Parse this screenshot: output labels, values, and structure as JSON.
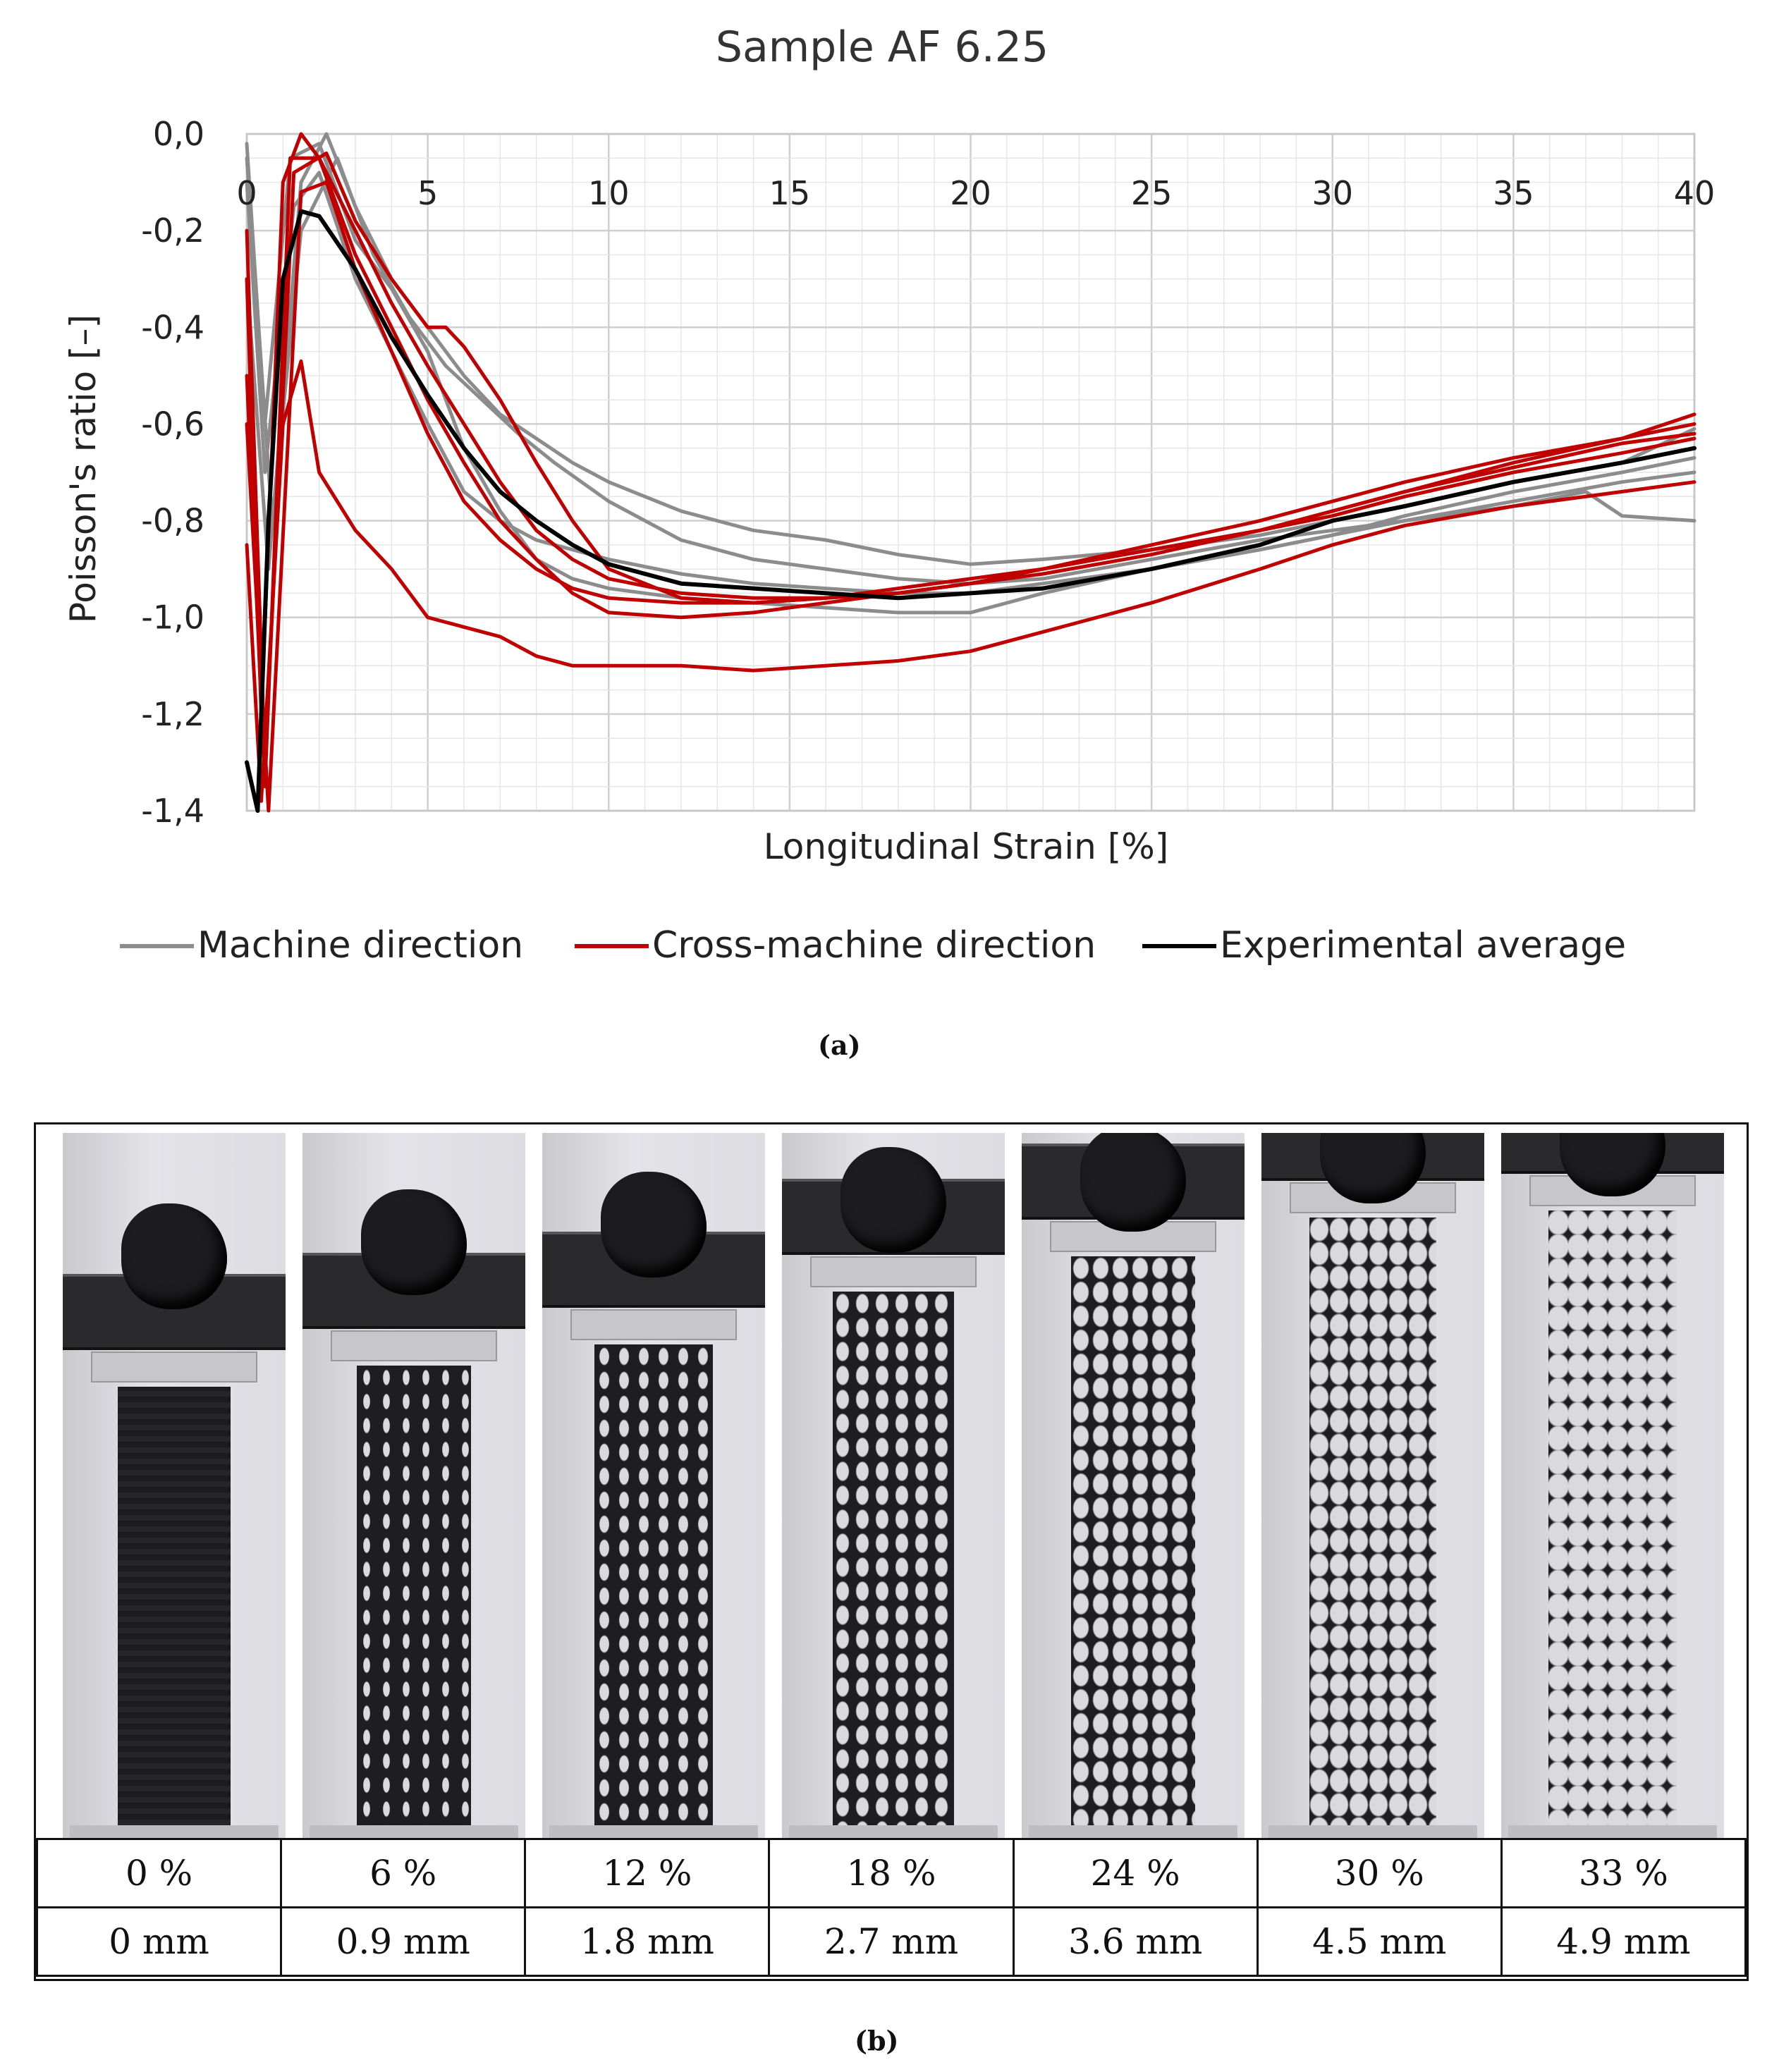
{
  "chart_data": {
    "type": "line",
    "title": "Sample AF 6.25",
    "xlabel": "Longitudinal Strain [%]",
    "ylabel": "Poisson's ratio [–]",
    "xlim": [
      0,
      40
    ],
    "ylim": [
      -1.4,
      0.0
    ],
    "x_ticks": [
      "0",
      "5",
      "10",
      "15",
      "20",
      "25",
      "30",
      "35",
      "40"
    ],
    "y_ticks": [
      "0,0",
      "-0,2",
      "-0,4",
      "-0,6",
      "-0,8",
      "-1,0",
      "-1,2",
      "-1,4"
    ],
    "grid": true,
    "legend_position": "bottom",
    "colors": {
      "machine": "#8c8c8c",
      "cross": "#c00000",
      "average": "#000000"
    },
    "series": [
      {
        "name": "Machine direction",
        "group": "machine",
        "legend": true,
        "x": [
          0,
          0.5,
          1.2,
          2,
          3,
          4,
          5,
          6,
          7,
          8,
          9,
          10,
          12,
          14,
          16,
          18,
          20,
          22,
          25,
          28,
          30,
          32,
          35,
          38,
          40
        ],
        "y": [
          -0.02,
          -0.6,
          -0.05,
          -0.02,
          -0.22,
          -0.32,
          -0.45,
          -0.65,
          -0.78,
          -0.88,
          -0.92,
          -0.94,
          -0.96,
          -0.97,
          -0.98,
          -0.99,
          -0.99,
          -0.95,
          -0.9,
          -0.86,
          -0.83,
          -0.79,
          -0.74,
          -0.7,
          -0.67
        ]
      },
      {
        "name": "Machine direction",
        "group": "machine",
        "legend": false,
        "x": [
          0,
          0.6,
          1.5,
          2.2,
          3,
          4,
          5,
          6,
          7,
          8,
          9,
          10,
          12,
          14,
          16,
          18,
          20,
          22,
          25,
          28,
          30,
          32,
          35,
          38,
          40
        ],
        "y": [
          -0.3,
          -0.9,
          -0.1,
          0.0,
          -0.15,
          -0.3,
          -0.4,
          -0.5,
          -0.58,
          -0.63,
          -0.68,
          -0.72,
          -0.78,
          -0.82,
          -0.84,
          -0.87,
          -0.89,
          -0.88,
          -0.86,
          -0.83,
          -0.8,
          -0.77,
          -0.72,
          -0.68,
          -0.61
        ]
      },
      {
        "name": "Machine direction",
        "group": "machine",
        "legend": false,
        "x": [
          0,
          0.7,
          1.5,
          2.5,
          3.5,
          4.5,
          5.5,
          6.5,
          7.5,
          8.5,
          10,
          12,
          14,
          16,
          18,
          20,
          22,
          25,
          28,
          30,
          32,
          35,
          37,
          38,
          40
        ],
        "y": [
          -0.05,
          -0.8,
          -0.2,
          -0.05,
          -0.25,
          -0.38,
          -0.48,
          -0.55,
          -0.62,
          -0.68,
          -0.76,
          -0.84,
          -0.88,
          -0.9,
          -0.92,
          -0.93,
          -0.92,
          -0.88,
          -0.84,
          -0.82,
          -0.8,
          -0.77,
          -0.74,
          -0.79,
          -0.8
        ]
      },
      {
        "name": "Machine direction",
        "group": "machine",
        "legend": false,
        "x": [
          0,
          0.5,
          1.3,
          2,
          3,
          4,
          5,
          6,
          7,
          8,
          9,
          10,
          12,
          14,
          16,
          18,
          20,
          22,
          25,
          28,
          30,
          32,
          35,
          38,
          40
        ],
        "y": [
          -0.1,
          -0.7,
          -0.15,
          -0.08,
          -0.3,
          -0.45,
          -0.6,
          -0.74,
          -0.8,
          -0.84,
          -0.86,
          -0.88,
          -0.91,
          -0.93,
          -0.94,
          -0.95,
          -0.95,
          -0.93,
          -0.9,
          -0.86,
          -0.83,
          -0.8,
          -0.76,
          -0.72,
          -0.7
        ]
      },
      {
        "name": "Cross-machine direction",
        "group": "cross",
        "legend": true,
        "x": [
          0,
          0.4,
          1,
          1.5,
          2,
          3,
          4,
          5,
          6,
          7,
          8,
          9,
          10,
          12,
          14,
          16,
          18,
          20,
          22,
          25,
          28,
          30,
          32,
          35,
          38,
          40
        ],
        "y": [
          -0.85,
          -1.38,
          -0.6,
          -0.47,
          -0.7,
          -0.82,
          -0.9,
          -1.0,
          -1.02,
          -1.04,
          -1.08,
          -1.1,
          -1.1,
          -1.1,
          -1.11,
          -1.1,
          -1.09,
          -1.07,
          -1.03,
          -0.97,
          -0.9,
          -0.85,
          -0.81,
          -0.77,
          -0.74,
          -0.72
        ]
      },
      {
        "name": "Cross-machine direction",
        "group": "cross",
        "legend": false,
        "x": [
          0,
          0.4,
          1,
          1.5,
          2,
          3,
          4,
          5,
          6,
          7,
          8,
          9,
          10,
          12,
          14,
          16,
          18,
          20,
          22,
          25,
          28,
          30,
          32,
          35,
          38,
          40
        ],
        "y": [
          -0.3,
          -1.2,
          -0.1,
          0.0,
          -0.05,
          -0.25,
          -0.4,
          -0.55,
          -0.68,
          -0.8,
          -0.88,
          -0.95,
          -0.99,
          -1.0,
          -0.99,
          -0.97,
          -0.95,
          -0.93,
          -0.9,
          -0.85,
          -0.8,
          -0.76,
          -0.72,
          -0.67,
          -0.63,
          -0.6
        ]
      },
      {
        "name": "Cross-machine direction",
        "group": "cross",
        "legend": false,
        "x": [
          0,
          0.5,
          1.2,
          2,
          3,
          4,
          5,
          6,
          7,
          8,
          9,
          10,
          12,
          14,
          16,
          18,
          20,
          22,
          25,
          28,
          30,
          32,
          35,
          38,
          40
        ],
        "y": [
          -0.5,
          -1.35,
          -0.05,
          -0.05,
          -0.2,
          -0.35,
          -0.48,
          -0.6,
          -0.72,
          -0.82,
          -0.88,
          -0.92,
          -0.95,
          -0.96,
          -0.96,
          -0.95,
          -0.93,
          -0.91,
          -0.87,
          -0.82,
          -0.78,
          -0.74,
          -0.69,
          -0.64,
          -0.62
        ]
      },
      {
        "name": "Cross-machine direction",
        "group": "cross",
        "legend": false,
        "x": [
          0,
          0.5,
          1.3,
          2.2,
          3,
          4,
          5,
          5.5,
          6,
          7,
          8,
          9,
          10,
          12,
          14,
          16,
          18,
          20,
          22,
          25,
          28,
          30,
          32,
          35,
          38,
          40
        ],
        "y": [
          -0.2,
          -1.3,
          -0.08,
          -0.04,
          -0.18,
          -0.3,
          -0.4,
          -0.4,
          -0.44,
          -0.55,
          -0.68,
          -0.8,
          -0.9,
          -0.96,
          -0.97,
          -0.96,
          -0.94,
          -0.92,
          -0.9,
          -0.86,
          -0.82,
          -0.78,
          -0.74,
          -0.68,
          -0.63,
          -0.58
        ]
      },
      {
        "name": "Cross-machine direction",
        "group": "cross",
        "legend": false,
        "x": [
          0,
          0.6,
          1.5,
          2.2,
          3,
          4,
          5,
          6,
          7,
          8,
          9,
          10,
          12,
          14,
          16,
          18,
          20,
          22,
          25,
          28,
          30,
          32,
          35,
          38,
          40
        ],
        "y": [
          -0.6,
          -1.4,
          -0.12,
          -0.1,
          -0.28,
          -0.45,
          -0.62,
          -0.76,
          -0.84,
          -0.9,
          -0.94,
          -0.96,
          -0.97,
          -0.97,
          -0.96,
          -0.95,
          -0.93,
          -0.9,
          -0.86,
          -0.82,
          -0.79,
          -0.75,
          -0.7,
          -0.66,
          -0.63
        ]
      },
      {
        "name": "Experimental average",
        "group": "average",
        "legend": true,
        "x": [
          0,
          0.3,
          0.6,
          1,
          1.5,
          2,
          3,
          4,
          5,
          6,
          7,
          8,
          9,
          10,
          12,
          14,
          16,
          18,
          20,
          22,
          25,
          28,
          30,
          32,
          35,
          38,
          40
        ],
        "y": [
          -1.3,
          -1.4,
          -0.8,
          -0.3,
          -0.16,
          -0.17,
          -0.28,
          -0.42,
          -0.54,
          -0.65,
          -0.74,
          -0.8,
          -0.85,
          -0.89,
          -0.93,
          -0.94,
          -0.95,
          -0.96,
          -0.95,
          -0.94,
          -0.9,
          -0.85,
          -0.8,
          -0.77,
          -0.72,
          -0.68,
          -0.65
        ]
      }
    ]
  },
  "panel_a_caption": "(a)",
  "panel_b_caption": "(b)",
  "table": {
    "strain_row": [
      "0 %",
      "6 %",
      "12 %",
      "18 %",
      "24 %",
      "30 %",
      "33 %"
    ],
    "displacement_row": [
      "0 mm",
      "0.9 mm",
      "1.8 mm",
      "2.7 mm",
      "3.6 mm",
      "4.5 mm",
      "4.9 mm"
    ]
  }
}
